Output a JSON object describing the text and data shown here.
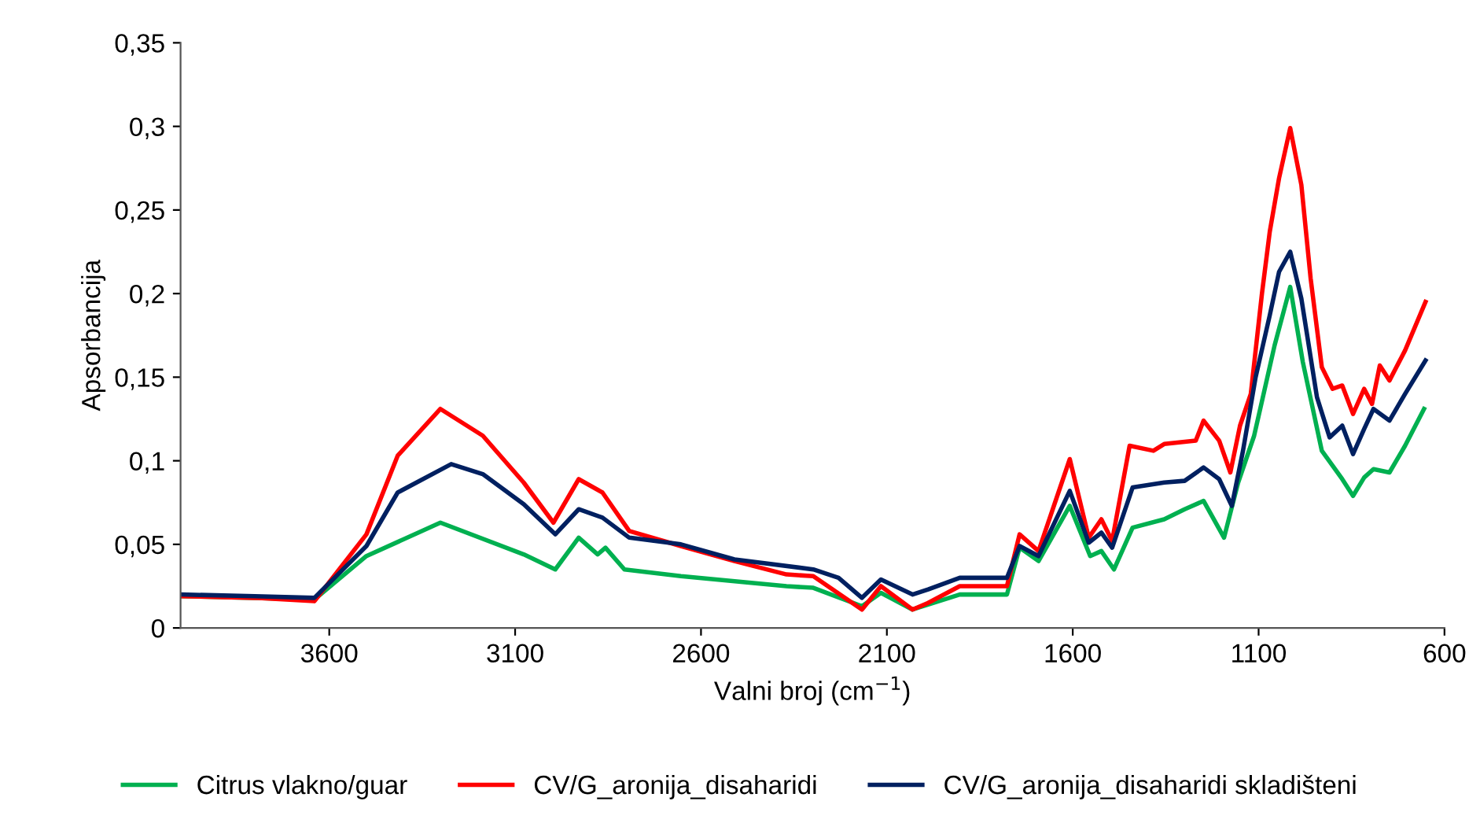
{
  "chart_data": {
    "type": "line",
    "xlabel": "Valni broj (cm$^{−1}$)",
    "ylabel": "Apsorbancija",
    "xlim": [
      4000,
      600
    ],
    "xticks": [
      3600,
      3100,
      2600,
      2100,
      1600,
      1100,
      600
    ],
    "ylim": [
      0,
      0.35
    ],
    "yticks": [
      0,
      {
        "value": 0.05,
        "label": "0,05"
      },
      {
        "value": 0.1,
        "label": "0,1"
      },
      {
        "value": 0.15,
        "label": "0,15"
      },
      {
        "value": 0.2,
        "label": "0,2"
      },
      {
        "value": 0.25,
        "label": "0,25"
      },
      {
        "value": 0.3,
        "label": "0,3"
      },
      {
        "value": 0.35,
        "label": "0,35"
      }
    ],
    "grid": false,
    "legend": "bottom",
    "marker": "none",
    "line_style": "solid",
    "series": [
      {
        "name": "Citrus vlakno/guar",
        "color": "#00b050",
        "x": [
          4000,
          3800,
          3640,
          3500,
          3301,
          3077,
          2992,
          2929,
          2878,
          2857,
          2806,
          2654,
          2370,
          2298,
          2167,
          2116,
          2031,
          1904,
          1777,
          1743,
          1692,
          1608,
          1553,
          1523,
          1489,
          1439,
          1354,
          1299,
          1248,
          1193,
          1155,
          1112,
          1057,
          1015,
          981,
          930,
          875,
          846,
          816,
          791,
          748,
          706,
          655
        ],
        "values": [
          0.019,
          0.018,
          0.017,
          0.043,
          0.063,
          0.044,
          0.035,
          0.054,
          0.044,
          0.048,
          0.035,
          0.031,
          0.025,
          0.024,
          0.013,
          0.021,
          0.011,
          0.02,
          0.02,
          0.048,
          0.04,
          0.073,
          0.043,
          0.046,
          0.035,
          0.06,
          0.065,
          0.071,
          0.076,
          0.054,
          0.087,
          0.115,
          0.169,
          0.204,
          0.159,
          0.106,
          0.089,
          0.079,
          0.09,
          0.095,
          0.093,
          0.109,
          0.131
        ]
      },
      {
        "name": "CV/G_aronija_disaharidi",
        "color": "#ff0000",
        "x": [
          4000,
          3800,
          3640,
          3500,
          3416,
          3301,
          3187,
          3077,
          2997,
          2929,
          2865,
          2793,
          2654,
          2510,
          2370,
          2298,
          2167,
          2116,
          2031,
          1989,
          1904,
          1777,
          1743,
          1692,
          1608,
          1557,
          1523,
          1494,
          1447,
          1383,
          1354,
          1269,
          1248,
          1206,
          1176,
          1150,
          1121,
          1091,
          1070,
          1045,
          1015,
          985,
          960,
          930,
          901,
          875,
          846,
          816,
          795,
          774,
          748,
          706,
          651
        ],
        "values": [
          0.019,
          0.018,
          0.016,
          0.056,
          0.103,
          0.131,
          0.115,
          0.087,
          0.063,
          0.089,
          0.081,
          0.058,
          0.049,
          0.04,
          0.032,
          0.031,
          0.011,
          0.025,
          0.011,
          0.015,
          0.025,
          0.025,
          0.056,
          0.046,
          0.101,
          0.054,
          0.065,
          0.052,
          0.109,
          0.106,
          0.11,
          0.112,
          0.124,
          0.112,
          0.093,
          0.121,
          0.14,
          0.2,
          0.237,
          0.269,
          0.299,
          0.265,
          0.209,
          0.156,
          0.143,
          0.145,
          0.128,
          0.143,
          0.134,
          0.157,
          0.148,
          0.166,
          0.195
        ]
      },
      {
        "name": "CV/G_aronija_disaharidi skladišteni",
        "color": "#002060",
        "x": [
          4000,
          3800,
          3640,
          3500,
          3416,
          3272,
          3187,
          3077,
          2992,
          2929,
          2865,
          2793,
          2654,
          2510,
          2298,
          2230,
          2167,
          2116,
          2031,
          1989,
          1904,
          1777,
          1743,
          1692,
          1608,
          1557,
          1523,
          1494,
          1439,
          1354,
          1299,
          1248,
          1206,
          1172,
          1142,
          1108,
          1070,
          1045,
          1015,
          985,
          943,
          909,
          875,
          846,
          816,
          791,
          748,
          706,
          651
        ],
        "values": [
          0.02,
          0.019,
          0.018,
          0.049,
          0.081,
          0.098,
          0.092,
          0.074,
          0.056,
          0.071,
          0.066,
          0.054,
          0.05,
          0.041,
          0.035,
          0.03,
          0.018,
          0.029,
          0.02,
          0.023,
          0.03,
          0.03,
          0.049,
          0.043,
          0.082,
          0.051,
          0.057,
          0.048,
          0.084,
          0.087,
          0.088,
          0.096,
          0.089,
          0.073,
          0.106,
          0.15,
          0.187,
          0.213,
          0.225,
          0.197,
          0.138,
          0.114,
          0.121,
          0.104,
          0.119,
          0.131,
          0.124,
          0.14,
          0.16
        ]
      }
    ]
  }
}
